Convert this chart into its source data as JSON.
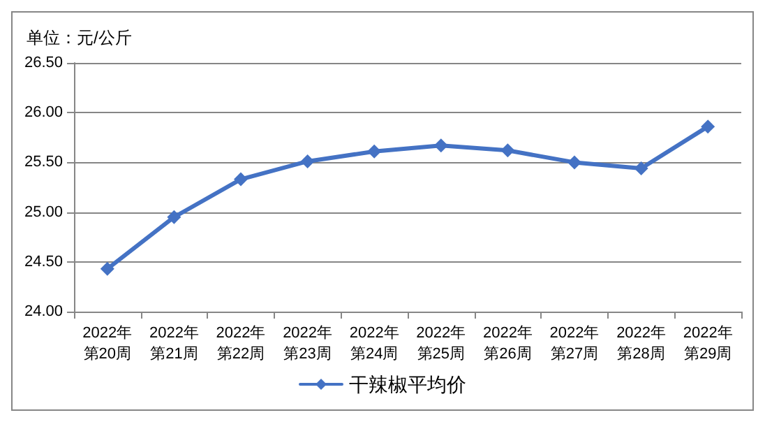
{
  "chart_data": {
    "type": "line",
    "ylabel": "单位：元/公斤",
    "categories": [
      "2022年第20周",
      "2022年第21周",
      "2022年第22周",
      "2022年第23周",
      "2022年第24周",
      "2022年第25周",
      "2022年第26周",
      "2022年第27周",
      "2022年第28周",
      "2022年第29周"
    ],
    "series": [
      {
        "name": "干辣椒平均价",
        "color": "#4472c4",
        "values": [
          24.43,
          24.95,
          25.33,
          25.51,
          25.61,
          25.67,
          25.62,
          25.5,
          25.44,
          25.86
        ]
      }
    ],
    "ylim": [
      24,
      26.5
    ],
    "yticks": [
      {
        "value": 24,
        "label": "24.00"
      },
      {
        "value": 24.5,
        "label": "24.50"
      },
      {
        "value": 25,
        "label": "25.00"
      },
      {
        "value": 25.5,
        "label": "25.50"
      },
      {
        "value": 26,
        "label": "26.00"
      },
      {
        "value": 26.5,
        "label": "26.50"
      }
    ],
    "grid": "y",
    "legend": "bottom",
    "marker": "diamond",
    "line_style": "solid"
  }
}
